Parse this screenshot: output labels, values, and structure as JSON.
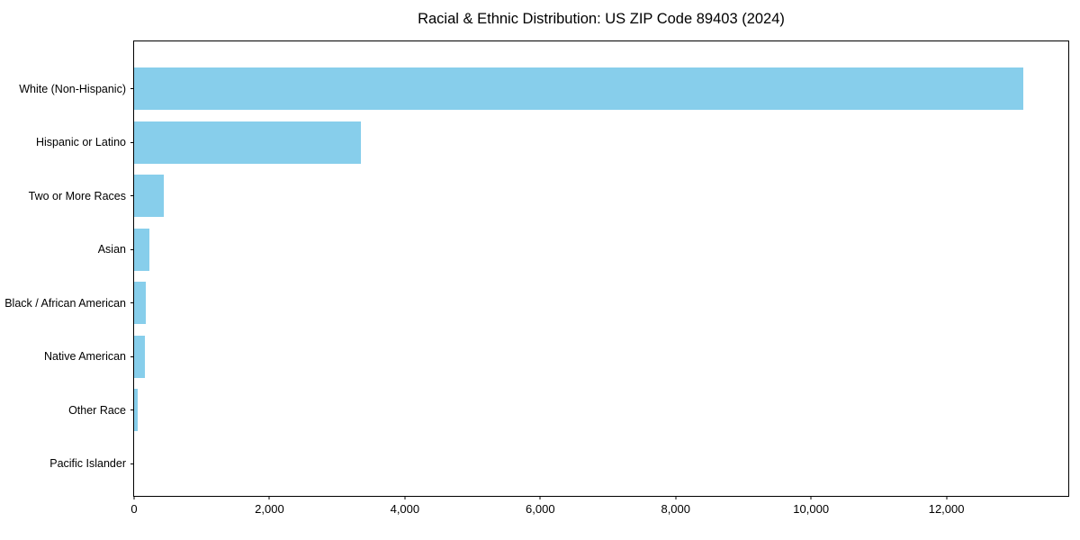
{
  "chart_data": {
    "type": "bar",
    "orientation": "horizontal",
    "title": "Racial & Ethnic Distribution: US ZIP Code 89403 (2024)",
    "xlabel": "",
    "ylabel": "",
    "categories": [
      "White (Non-Hispanic)",
      "Hispanic or Latino",
      "Two or More Races",
      "Asian",
      "Black / African American",
      "Native American",
      "Other Race",
      "Pacific Islander"
    ],
    "values": [
      13130,
      3350,
      440,
      225,
      175,
      160,
      50,
      0
    ],
    "xlim": [
      0,
      13800
    ],
    "xticks": [
      {
        "value": 0,
        "label": "0"
      },
      {
        "value": 2000,
        "label": "2,000"
      },
      {
        "value": 4000,
        "label": "4,000"
      },
      {
        "value": 6000,
        "label": "6,000"
      },
      {
        "value": 8000,
        "label": "8,000"
      },
      {
        "value": 10000,
        "label": "10,000"
      },
      {
        "value": 12000,
        "label": "12,000"
      }
    ],
    "bar_color": "#87CEEB",
    "spine_color": "#000000",
    "grid": false,
    "legend": null
  }
}
